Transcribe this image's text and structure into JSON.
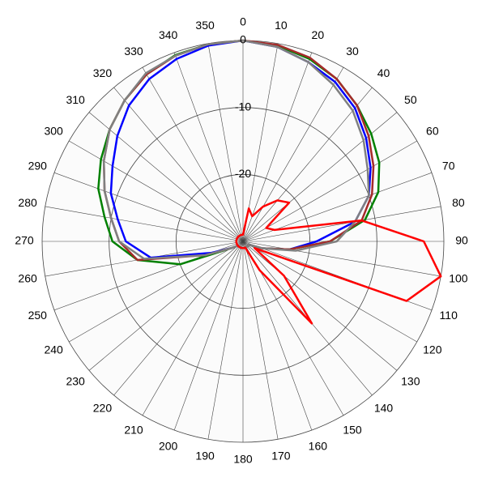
{
  "chart_data": {
    "type": "polar",
    "theta": [
      0,
      10,
      20,
      30,
      40,
      50,
      60,
      70,
      80,
      90,
      100,
      110,
      120,
      130,
      140,
      150,
      160,
      170,
      180,
      190,
      200,
      210,
      220,
      230,
      240,
      250,
      260,
      270,
      280,
      290,
      300,
      310,
      320,
      330,
      340,
      350
    ],
    "thetaticks": [
      0,
      10,
      20,
      30,
      40,
      50,
      60,
      70,
      80,
      90,
      100,
      110,
      120,
      130,
      140,
      150,
      160,
      170,
      180,
      190,
      200,
      210,
      220,
      230,
      240,
      250,
      260,
      270,
      280,
      290,
      300,
      310,
      320,
      330,
      340,
      350
    ],
    "rlim": [
      -30,
      0
    ],
    "rticks": [
      -20,
      -10,
      0
    ],
    "series": [
      {
        "color": "#0000ff",
        "values": [
          0,
          -0.5,
          -1.5,
          -2.5,
          -4,
          -6,
          -8,
          -10,
          -13,
          -19,
          -23,
          -27,
          -29,
          -29,
          -29,
          -29,
          -29,
          -29,
          -29,
          -29,
          -29,
          -29,
          -29,
          -29,
          -28,
          -25,
          -16,
          -12.5,
          -11,
          -9,
          -7.5,
          -5.5,
          -3.5,
          -2,
          -1,
          -0.3
        ]
      },
      {
        "color": "#008000",
        "values": [
          0,
          -0.3,
          -1,
          -2,
          -3.5,
          -5,
          -6.5,
          -8.5,
          -11.5,
          -17,
          -23,
          -27,
          -29,
          -29,
          -29,
          -29,
          -29,
          -29,
          -29,
          -29,
          -29,
          -29,
          -29,
          -29,
          -28,
          -20,
          -14,
          -10.5,
          -9,
          -7,
          -5.5,
          -4,
          -2.5,
          -1.2,
          -0.4,
          -0.1
        ]
      },
      {
        "color": "#a52a2a",
        "values": [
          0,
          -0.2,
          -0.8,
          -2,
          -3.5,
          -5.5,
          -7.5,
          -9.5,
          -12,
          -17,
          -23,
          -27,
          -29,
          -29,
          -29,
          -29,
          -29,
          -29,
          -29,
          -29,
          -29,
          -29,
          -29,
          -29,
          -28,
          -24,
          -14,
          -11.5,
          -10,
          -8,
          -6,
          -4,
          -2.5,
          -1.2,
          -0.5,
          -0.1
        ]
      },
      {
        "color": "#808080",
        "values": [
          0,
          -0.5,
          -1.5,
          -3,
          -4.5,
          -6.5,
          -8.5,
          -10,
          -13,
          -16,
          -22,
          -27,
          -29,
          -29,
          -29,
          -29,
          -29,
          -29,
          -29,
          -29,
          -29,
          -29,
          -29,
          -29,
          -28,
          -24,
          -15,
          -11.5,
          -10,
          -8,
          -6,
          -4,
          -2.5,
          -1,
          -0.5,
          -0.1
        ]
      },
      {
        "color": "#ff0000",
        "values": [
          -29,
          -25,
          -26,
          -24,
          -22,
          -21,
          -26,
          -25,
          -12,
          -3,
          0,
          -4,
          -28,
          -22,
          -14,
          -25,
          -29,
          -29,
          -29,
          -29,
          -29,
          -29,
          -29,
          -29,
          -29,
          -29,
          -29,
          -29,
          -29,
          -29,
          -29,
          -29,
          -29,
          -29,
          -29,
          -29
        ]
      }
    ]
  }
}
